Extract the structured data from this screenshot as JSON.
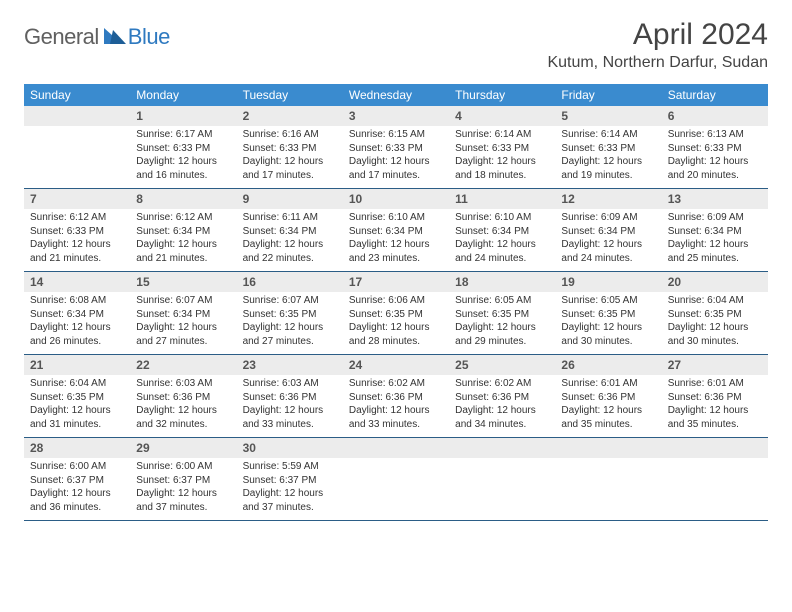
{
  "logo": {
    "general": "General",
    "blue": "Blue"
  },
  "title": "April 2024",
  "location": "Kutum, Northern Darfur, Sudan",
  "colors": {
    "header_bg": "#3a8bcf",
    "header_text": "#ffffff",
    "daynum_bg": "#ececec",
    "daynum_text": "#555555",
    "week_border": "#2b5d86",
    "body_text": "#333333",
    "logo_general": "#606060",
    "logo_blue": "#2f7ac0"
  },
  "day_names": [
    "Sunday",
    "Monday",
    "Tuesday",
    "Wednesday",
    "Thursday",
    "Friday",
    "Saturday"
  ],
  "weeks": [
    [
      null,
      {
        "d": "1",
        "sr": "Sunrise: 6:17 AM",
        "ss": "Sunset: 6:33 PM",
        "dl1": "Daylight: 12 hours",
        "dl2": "and 16 minutes."
      },
      {
        "d": "2",
        "sr": "Sunrise: 6:16 AM",
        "ss": "Sunset: 6:33 PM",
        "dl1": "Daylight: 12 hours",
        "dl2": "and 17 minutes."
      },
      {
        "d": "3",
        "sr": "Sunrise: 6:15 AM",
        "ss": "Sunset: 6:33 PM",
        "dl1": "Daylight: 12 hours",
        "dl2": "and 17 minutes."
      },
      {
        "d": "4",
        "sr": "Sunrise: 6:14 AM",
        "ss": "Sunset: 6:33 PM",
        "dl1": "Daylight: 12 hours",
        "dl2": "and 18 minutes."
      },
      {
        "d": "5",
        "sr": "Sunrise: 6:14 AM",
        "ss": "Sunset: 6:33 PM",
        "dl1": "Daylight: 12 hours",
        "dl2": "and 19 minutes."
      },
      {
        "d": "6",
        "sr": "Sunrise: 6:13 AM",
        "ss": "Sunset: 6:33 PM",
        "dl1": "Daylight: 12 hours",
        "dl2": "and 20 minutes."
      }
    ],
    [
      {
        "d": "7",
        "sr": "Sunrise: 6:12 AM",
        "ss": "Sunset: 6:33 PM",
        "dl1": "Daylight: 12 hours",
        "dl2": "and 21 minutes."
      },
      {
        "d": "8",
        "sr": "Sunrise: 6:12 AM",
        "ss": "Sunset: 6:34 PM",
        "dl1": "Daylight: 12 hours",
        "dl2": "and 21 minutes."
      },
      {
        "d": "9",
        "sr": "Sunrise: 6:11 AM",
        "ss": "Sunset: 6:34 PM",
        "dl1": "Daylight: 12 hours",
        "dl2": "and 22 minutes."
      },
      {
        "d": "10",
        "sr": "Sunrise: 6:10 AM",
        "ss": "Sunset: 6:34 PM",
        "dl1": "Daylight: 12 hours",
        "dl2": "and 23 minutes."
      },
      {
        "d": "11",
        "sr": "Sunrise: 6:10 AM",
        "ss": "Sunset: 6:34 PM",
        "dl1": "Daylight: 12 hours",
        "dl2": "and 24 minutes."
      },
      {
        "d": "12",
        "sr": "Sunrise: 6:09 AM",
        "ss": "Sunset: 6:34 PM",
        "dl1": "Daylight: 12 hours",
        "dl2": "and 24 minutes."
      },
      {
        "d": "13",
        "sr": "Sunrise: 6:09 AM",
        "ss": "Sunset: 6:34 PM",
        "dl1": "Daylight: 12 hours",
        "dl2": "and 25 minutes."
      }
    ],
    [
      {
        "d": "14",
        "sr": "Sunrise: 6:08 AM",
        "ss": "Sunset: 6:34 PM",
        "dl1": "Daylight: 12 hours",
        "dl2": "and 26 minutes."
      },
      {
        "d": "15",
        "sr": "Sunrise: 6:07 AM",
        "ss": "Sunset: 6:34 PM",
        "dl1": "Daylight: 12 hours",
        "dl2": "and 27 minutes."
      },
      {
        "d": "16",
        "sr": "Sunrise: 6:07 AM",
        "ss": "Sunset: 6:35 PM",
        "dl1": "Daylight: 12 hours",
        "dl2": "and 27 minutes."
      },
      {
        "d": "17",
        "sr": "Sunrise: 6:06 AM",
        "ss": "Sunset: 6:35 PM",
        "dl1": "Daylight: 12 hours",
        "dl2": "and 28 minutes."
      },
      {
        "d": "18",
        "sr": "Sunrise: 6:05 AM",
        "ss": "Sunset: 6:35 PM",
        "dl1": "Daylight: 12 hours",
        "dl2": "and 29 minutes."
      },
      {
        "d": "19",
        "sr": "Sunrise: 6:05 AM",
        "ss": "Sunset: 6:35 PM",
        "dl1": "Daylight: 12 hours",
        "dl2": "and 30 minutes."
      },
      {
        "d": "20",
        "sr": "Sunrise: 6:04 AM",
        "ss": "Sunset: 6:35 PM",
        "dl1": "Daylight: 12 hours",
        "dl2": "and 30 minutes."
      }
    ],
    [
      {
        "d": "21",
        "sr": "Sunrise: 6:04 AM",
        "ss": "Sunset: 6:35 PM",
        "dl1": "Daylight: 12 hours",
        "dl2": "and 31 minutes."
      },
      {
        "d": "22",
        "sr": "Sunrise: 6:03 AM",
        "ss": "Sunset: 6:36 PM",
        "dl1": "Daylight: 12 hours",
        "dl2": "and 32 minutes."
      },
      {
        "d": "23",
        "sr": "Sunrise: 6:03 AM",
        "ss": "Sunset: 6:36 PM",
        "dl1": "Daylight: 12 hours",
        "dl2": "and 33 minutes."
      },
      {
        "d": "24",
        "sr": "Sunrise: 6:02 AM",
        "ss": "Sunset: 6:36 PM",
        "dl1": "Daylight: 12 hours",
        "dl2": "and 33 minutes."
      },
      {
        "d": "25",
        "sr": "Sunrise: 6:02 AM",
        "ss": "Sunset: 6:36 PM",
        "dl1": "Daylight: 12 hours",
        "dl2": "and 34 minutes."
      },
      {
        "d": "26",
        "sr": "Sunrise: 6:01 AM",
        "ss": "Sunset: 6:36 PM",
        "dl1": "Daylight: 12 hours",
        "dl2": "and 35 minutes."
      },
      {
        "d": "27",
        "sr": "Sunrise: 6:01 AM",
        "ss": "Sunset: 6:36 PM",
        "dl1": "Daylight: 12 hours",
        "dl2": "and 35 minutes."
      }
    ],
    [
      {
        "d": "28",
        "sr": "Sunrise: 6:00 AM",
        "ss": "Sunset: 6:37 PM",
        "dl1": "Daylight: 12 hours",
        "dl2": "and 36 minutes."
      },
      {
        "d": "29",
        "sr": "Sunrise: 6:00 AM",
        "ss": "Sunset: 6:37 PM",
        "dl1": "Daylight: 12 hours",
        "dl2": "and 37 minutes."
      },
      {
        "d": "30",
        "sr": "Sunrise: 5:59 AM",
        "ss": "Sunset: 6:37 PM",
        "dl1": "Daylight: 12 hours",
        "dl2": "and 37 minutes."
      },
      null,
      null,
      null,
      null
    ]
  ]
}
